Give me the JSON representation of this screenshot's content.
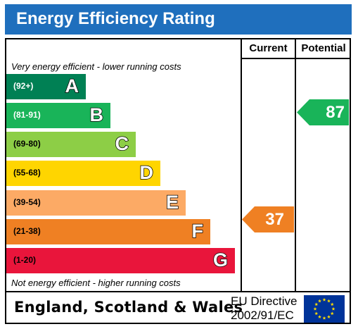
{
  "title": "Energy Efficiency Rating",
  "columns": {
    "current": "Current",
    "potential": "Potential"
  },
  "top_note": "Very energy efficient - lower running costs",
  "bottom_note": "Not energy efficient - higher running costs",
  "footer": {
    "country": "England, Scotland & Wales",
    "directive_line1": "EU Directive",
    "directive_line2": "2002/91/EC"
  },
  "colors": {
    "header": "#1f6fbd",
    "band_A": "#008054",
    "band_B": "#19b459",
    "band_C": "#8dce46",
    "band_D": "#ffd500",
    "band_E": "#fcaa65",
    "band_F": "#ef8023",
    "band_G": "#e9153b",
    "eu_flag": "#003399",
    "eu_stars": "#ffdd00"
  },
  "chart_data": {
    "type": "bar",
    "title": "Energy Efficiency Rating",
    "bands": [
      {
        "letter": "A",
        "range": "(92+)",
        "color": "#008054",
        "range_color": "#ffffff"
      },
      {
        "letter": "B",
        "range": "(81-91)",
        "color": "#19b459",
        "range_color": "#ffffff"
      },
      {
        "letter": "C",
        "range": "(69-80)",
        "color": "#8dce46",
        "range_color": "#000000"
      },
      {
        "letter": "D",
        "range": "(55-68)",
        "color": "#ffd500",
        "range_color": "#000000"
      },
      {
        "letter": "E",
        "range": "(39-54)",
        "color": "#fcaa65",
        "range_color": "#000000"
      },
      {
        "letter": "F",
        "range": "(21-38)",
        "color": "#ef8023",
        "range_color": "#000000"
      },
      {
        "letter": "G",
        "range": "(1-20)",
        "color": "#e9153b",
        "range_color": "#000000"
      }
    ],
    "current": {
      "value": 37,
      "band": "F",
      "color": "#ef8023"
    },
    "potential": {
      "value": 87,
      "band": "B",
      "color": "#19b459"
    }
  }
}
